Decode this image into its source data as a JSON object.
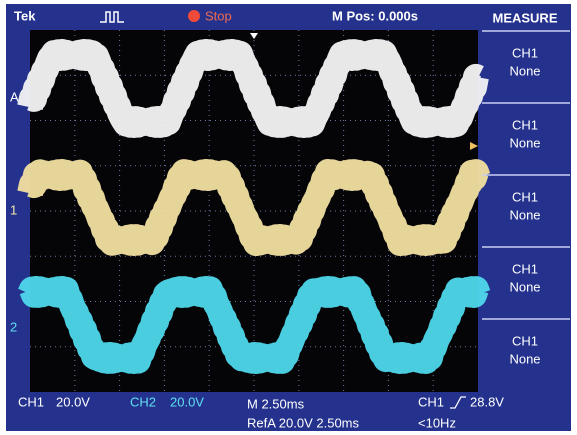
{
  "header": {
    "brand": "Tek",
    "trigger_status": "Stop",
    "position": "M Pos: 0.000s"
  },
  "menu": {
    "title": "MEASURE",
    "items": [
      {
        "source": "CH1",
        "value": "None"
      },
      {
        "source": "CH1",
        "value": "None"
      },
      {
        "source": "CH1",
        "value": "None"
      },
      {
        "source": "CH1",
        "value": "None"
      },
      {
        "source": "CH1",
        "value": "None"
      }
    ]
  },
  "markers": {
    "ref": "A",
    "ch1": "1",
    "ch2": "2"
  },
  "status": {
    "ch1_label": "CH1",
    "ch1_scale": "20.0V",
    "ch2_label": "CH2",
    "ch2_scale": "20.0V",
    "timebase": "M 2.50ms",
    "trigger_source": "CH1",
    "trigger_level": "28.8V",
    "ref": "RefA 20.0V 2.50ms",
    "frequency": "<10Hz"
  }
}
